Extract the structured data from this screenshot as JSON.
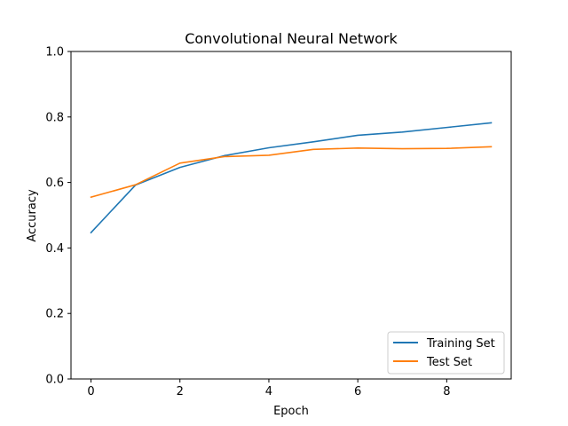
{
  "chart_data": {
    "type": "line",
    "title": "Convolutional Neural Network",
    "xlabel": "Epoch",
    "ylabel": "Accuracy",
    "xlim": [
      -0.45,
      9.45
    ],
    "ylim": [
      0.0,
      1.0
    ],
    "x_ticks": [
      0,
      2,
      4,
      6,
      8
    ],
    "y_ticks": [
      0.0,
      0.2,
      0.4,
      0.6,
      0.8,
      1.0
    ],
    "x_tick_labels": [
      "0",
      "2",
      "4",
      "6",
      "8"
    ],
    "y_tick_labels": [
      "0.0",
      "0.2",
      "0.4",
      "0.6",
      "0.8",
      "1.0"
    ],
    "grid": false,
    "legend_position": "lower-right",
    "x": [
      0,
      1,
      2,
      3,
      4,
      5,
      6,
      7,
      8,
      9
    ],
    "series": [
      {
        "name": "Training Set",
        "color": "#1f77b4",
        "values": [
          0.447,
          0.592,
          0.646,
          0.682,
          0.706,
          0.724,
          0.744,
          0.754,
          0.768,
          0.782
        ]
      },
      {
        "name": "Test Set",
        "color": "#ff7f0e",
        "values": [
          0.555,
          0.593,
          0.659,
          0.679,
          0.683,
          0.701,
          0.705,
          0.703,
          0.704,
          0.709
        ]
      }
    ]
  }
}
